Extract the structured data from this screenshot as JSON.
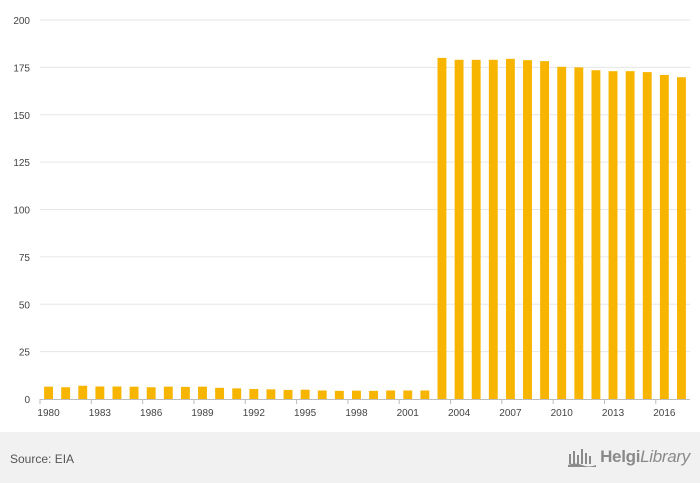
{
  "chart_data": {
    "type": "bar",
    "categories": [
      "1980",
      "1981",
      "1982",
      "1983",
      "1984",
      "1985",
      "1986",
      "1987",
      "1988",
      "1989",
      "1990",
      "1991",
      "1992",
      "1993",
      "1994",
      "1995",
      "1996",
      "1997",
      "1998",
      "1999",
      "2000",
      "2001",
      "2002",
      "2003",
      "2004",
      "2005",
      "2006",
      "2007",
      "2008",
      "2009",
      "2010",
      "2011",
      "2012",
      "2013",
      "2014",
      "2015",
      "2016",
      "2017"
    ],
    "values": [
      6.5,
      6.2,
      7.0,
      6.6,
      6.6,
      6.5,
      6.2,
      6.5,
      6.4,
      6.5,
      5.9,
      5.6,
      5.3,
      5.1,
      4.8,
      4.9,
      4.5,
      4.3,
      4.4,
      4.3,
      4.5,
      4.5,
      4.5,
      180,
      179,
      179,
      179,
      179.5,
      178.8,
      178.3,
      175.3,
      175,
      173.5,
      173,
      173,
      172.5,
      171,
      169.8
    ],
    "x_tick_labels": [
      "1980",
      "1983",
      "1986",
      "1989",
      "1992",
      "1995",
      "1998",
      "2001",
      "2004",
      "2007",
      "2010",
      "2013",
      "2016"
    ],
    "y_ticks": [
      0,
      25,
      50,
      75,
      100,
      125,
      150,
      175,
      200
    ],
    "ylim": [
      0,
      200
    ],
    "title": "",
    "xlabel": "",
    "ylabel": "",
    "bar_color": "#f7b500",
    "grid": true,
    "legend": "none"
  },
  "footer": {
    "source": "Source: EIA",
    "logo_helgi": "Helgi",
    "logo_library": "Library",
    "logo_icon": "helgi-library-logo-icon"
  },
  "colors": {
    "bar": "#f7b500",
    "grid": "#e6e6e6",
    "axis": "#bdbdbd",
    "footer_bg": "#f1f1f1"
  }
}
